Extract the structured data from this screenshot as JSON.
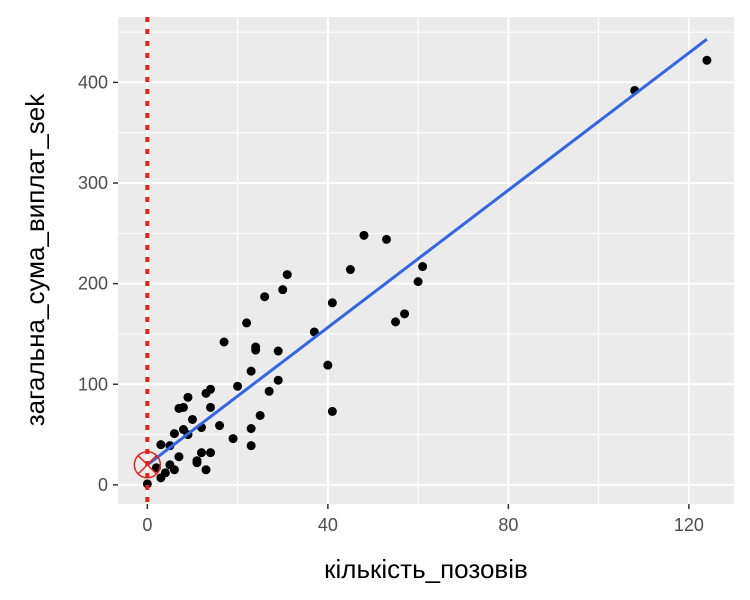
{
  "chart_data": {
    "type": "scatter",
    "xlabel": "кількість_позовів",
    "ylabel": "загальна_сума_виплат_sek",
    "xlim": [
      -6.5,
      130
    ],
    "ylim": [
      -19,
      465
    ],
    "x_ticks": [
      0,
      40,
      80,
      120
    ],
    "x_tick_labels": [
      "0",
      "40",
      "80",
      "120"
    ],
    "y_ticks": [
      0,
      100,
      200,
      300,
      400
    ],
    "y_tick_labels": [
      "0",
      "100",
      "200",
      "300",
      "400"
    ],
    "grid": true,
    "points": [
      [
        108,
        392
      ],
      [
        124,
        422
      ],
      [
        48,
        248
      ],
      [
        53,
        244
      ],
      [
        45,
        214
      ],
      [
        31,
        209
      ],
      [
        30,
        194
      ],
      [
        26,
        187
      ],
      [
        61,
        217
      ],
      [
        60,
        202
      ],
      [
        41,
        181
      ],
      [
        22,
        161
      ],
      [
        57,
        170
      ],
      [
        55,
        162
      ],
      [
        37,
        152
      ],
      [
        17,
        142
      ],
      [
        24,
        137
      ],
      [
        24,
        134
      ],
      [
        29,
        133
      ],
      [
        40,
        119
      ],
      [
        23,
        113
      ],
      [
        29,
        104
      ],
      [
        20,
        98
      ],
      [
        27,
        93
      ],
      [
        14,
        95
      ],
      [
        13,
        91
      ],
      [
        9,
        87
      ],
      [
        14,
        77
      ],
      [
        8,
        77
      ],
      [
        7,
        76
      ],
      [
        25,
        69
      ],
      [
        41,
        73
      ],
      [
        10,
        65
      ],
      [
        12,
        57
      ],
      [
        16,
        59
      ],
      [
        23,
        56
      ],
      [
        8,
        55
      ],
      [
        6,
        51
      ],
      [
        9,
        50
      ],
      [
        19,
        46
      ],
      [
        3,
        40
      ],
      [
        5,
        39
      ],
      [
        23,
        39
      ],
      [
        14,
        32
      ],
      [
        12,
        32
      ],
      [
        7,
        28
      ],
      [
        11,
        24
      ],
      [
        11,
        22
      ],
      [
        5,
        20
      ],
      [
        2,
        17
      ],
      [
        6,
        15
      ],
      [
        13,
        15
      ],
      [
        4,
        12
      ],
      [
        3,
        7
      ],
      [
        0,
        1
      ]
    ],
    "fit_line": {
      "x": [
        0,
        124
      ],
      "y": [
        20,
        443
      ],
      "color": "#3366e0"
    },
    "vline": {
      "x": 0,
      "color": "#e0241b",
      "style": "dotted"
    },
    "marker": {
      "x": 0,
      "y": 20,
      "color": "#e0241b",
      "shape": "circle-cross"
    },
    "point_color": "#000000",
    "panel_background": "#ebebeb",
    "grid_color": "#ffffff"
  }
}
